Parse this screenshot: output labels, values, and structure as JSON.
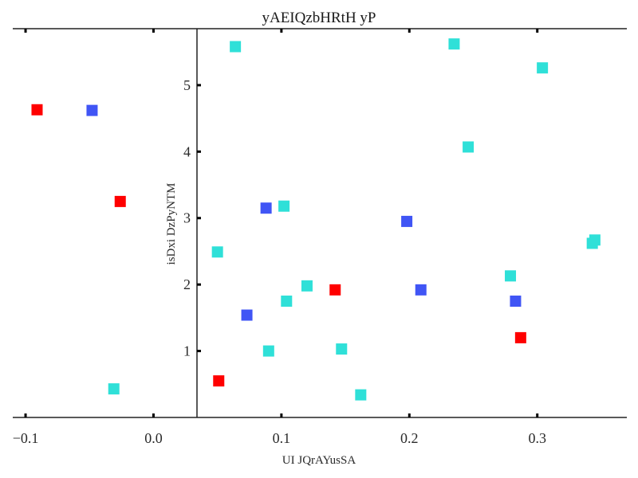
{
  "chart_data": {
    "type": "scatter",
    "title": "yAEIQzbHRtH yP",
    "xlabel": "UI JQrAYusSA",
    "ylabel": "isDxi DzPyNTM",
    "xlim": [
      -0.11,
      0.37
    ],
    "ylim": [
      0.0,
      5.85
    ],
    "x_ticks": [
      -0.1,
      0.0,
      0.1,
      0.2,
      0.3
    ],
    "x_tick_labels": [
      "−0.1",
      "0.0",
      "0.1",
      "0.2",
      "0.3"
    ],
    "y_ticks": [
      1,
      2,
      3,
      4,
      5
    ],
    "y_tick_labels": [
      "1",
      "2",
      "3",
      "4",
      "5"
    ],
    "grid": false,
    "y_axis_at_x": 0.034,
    "marker": "square",
    "series": [
      {
        "color": "#ff0000",
        "points": [
          {
            "x": -0.091,
            "y": 4.63
          },
          {
            "x": -0.026,
            "y": 3.25
          },
          {
            "x": 0.051,
            "y": 0.55
          },
          {
            "x": 0.142,
            "y": 1.92
          },
          {
            "x": 0.287,
            "y": 1.2
          }
        ]
      },
      {
        "color": "#4055f5",
        "points": [
          {
            "x": -0.048,
            "y": 4.62
          },
          {
            "x": 0.073,
            "y": 1.54
          },
          {
            "x": 0.088,
            "y": 3.15
          },
          {
            "x": 0.198,
            "y": 2.95
          },
          {
            "x": 0.209,
            "y": 1.92
          },
          {
            "x": 0.283,
            "y": 1.75
          }
        ]
      },
      {
        "color": "#2fe0d8",
        "points": [
          {
            "x": -0.031,
            "y": 0.43
          },
          {
            "x": 0.05,
            "y": 2.49
          },
          {
            "x": 0.064,
            "y": 5.58
          },
          {
            "x": 0.09,
            "y": 1.0
          },
          {
            "x": 0.102,
            "y": 3.18
          },
          {
            "x": 0.104,
            "y": 1.75
          },
          {
            "x": 0.12,
            "y": 1.98
          },
          {
            "x": 0.147,
            "y": 1.03
          },
          {
            "x": 0.162,
            "y": 0.34
          },
          {
            "x": 0.235,
            "y": 5.62
          },
          {
            "x": 0.246,
            "y": 4.07
          },
          {
            "x": 0.279,
            "y": 2.13
          },
          {
            "x": 0.304,
            "y": 5.26
          },
          {
            "x": 0.343,
            "y": 2.62
          },
          {
            "x": 0.345,
            "y": 2.67
          }
        ]
      }
    ]
  }
}
